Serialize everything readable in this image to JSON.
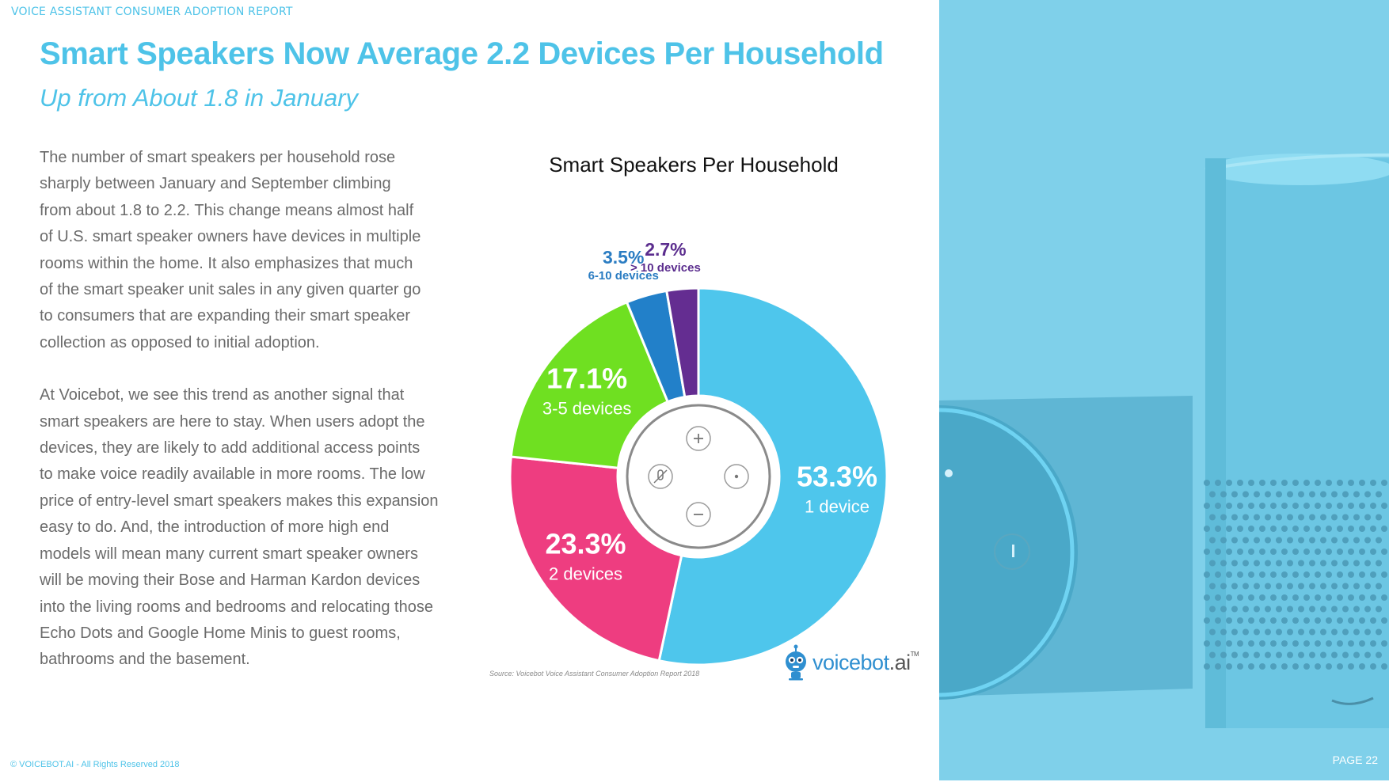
{
  "header": {
    "report_name": "VOICE ASSISTANT CONSUMER ADOPTION REPORT",
    "page_label": "PAGE 22"
  },
  "title": "Smart Speakers Now Average 2.2 Devices Per Household",
  "subtitle": "Up from About 1.8 in January",
  "body": {
    "paragraph1": "The number of smart speakers per household rose\nsharply between January and September climbing\nfrom about 1.8 to 2.2. This change means almost half\nof U.S. smart speaker owners have devices in multiple\nrooms within the home. It also emphasizes that much\nof the smart speaker unit sales in any given quarter go\nto consumers that are expanding their smart speaker\ncollection as opposed to initial adoption.",
    "paragraph2": "At Voicebot, we see this trend as another signal that\nsmart speakers are here to stay. When users adopt the\ndevices, they are likely to add additional access points\nto make voice readily available in more rooms. The low\nprice of entry-level smart speakers makes this expansion\neasy to do. And, the introduction of more high end\nmodels will mean many current smart speaker owners\nwill be moving their Bose and Harman Kardon devices\ninto the living rooms and bedrooms and relocating those\nEcho Dots and Google Home Minis to guest rooms,\nbathrooms and the basement."
  },
  "chart_data": {
    "type": "pie",
    "donut": true,
    "title": "Smart Speakers Per Household",
    "slices": [
      {
        "label": "1 device",
        "value": 53.3,
        "display": "53.3%",
        "color": "#4ec6ec",
        "label_color": "#ffffff"
      },
      {
        "label": "2 devices",
        "value": 23.3,
        "display": "23.3%",
        "color": "#ee3d80",
        "label_color": "#ffffff"
      },
      {
        "label": "3-5 devices",
        "value": 17.1,
        "display": "17.1%",
        "color": "#6fe021",
        "label_color": "#ffffff"
      },
      {
        "label": "6-10 devices",
        "value": 3.5,
        "display": "3.5%",
        "color": "#2280c9",
        "label_color": "#2a7cc2"
      },
      {
        "label": "> 10 devices",
        "value": 2.7,
        "display": "2.7%",
        "color": "#642d91",
        "label_color": "#5b2d8e"
      }
    ],
    "legend": "none",
    "source": "Source: Voicebot Voice Assistant Consumer Adoption Report 2018"
  },
  "brand": {
    "name": "voicebot",
    "suffix": ".ai",
    "tm": "TM",
    "accent": "#2f8fd0"
  },
  "footer": {
    "copyright": "© VOICEBOT.AI - All Rights Reserved 2018"
  },
  "colors": {
    "accent": "#4ec3e8",
    "body_text": "#6b6b6b",
    "panel": "#7fd0ea"
  }
}
